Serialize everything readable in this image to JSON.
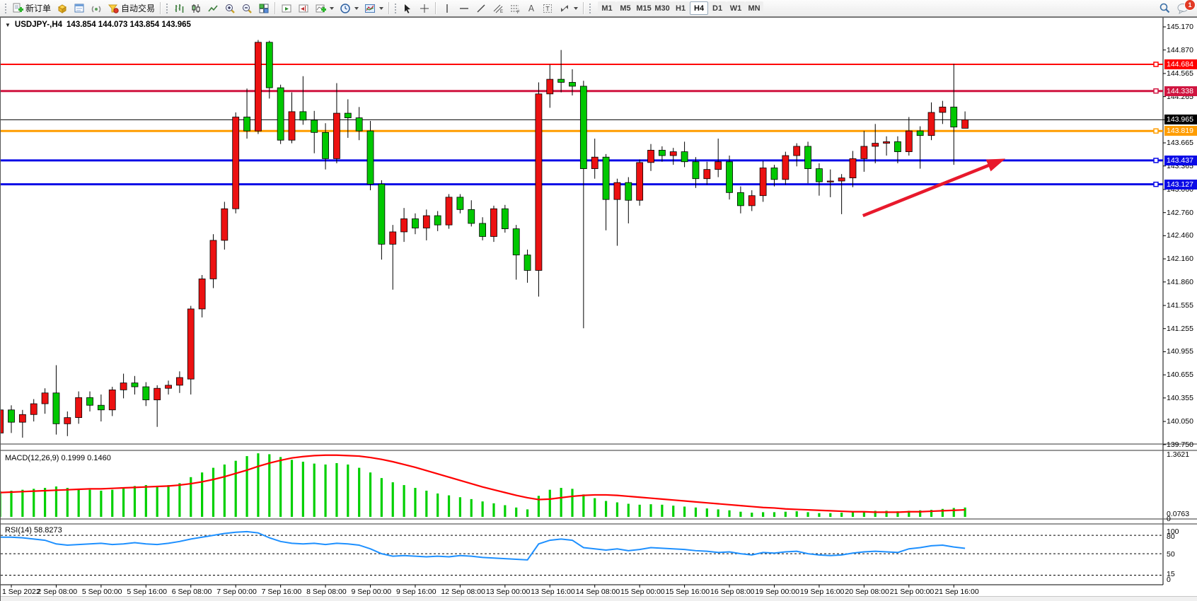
{
  "toolbar": {
    "new_order_label": "新订单",
    "autotrading_label": "自动交易",
    "timeframes": [
      "M1",
      "M5",
      "M15",
      "M30",
      "H1",
      "H4",
      "D1",
      "W1",
      "MN"
    ],
    "active_timeframe": "H4",
    "notification_count": "1"
  },
  "chart": {
    "symbol_period": "USDJPY-,H4",
    "ohlc": "143.854 144.073 143.854 143.965"
  },
  "indicators": {
    "macd": {
      "name": "MACD(12,26,9)",
      "values": "0.1999 0.1460"
    },
    "rsi": {
      "name": "RSI(14)",
      "value": "58.8273"
    }
  },
  "chart_data": {
    "type": "candlestick",
    "symbol": "USDJPY-",
    "timeframe": "H4",
    "title": "USDJPY-,H4 143.854 144.073 143.854 143.965",
    "ylim": [
      139.71,
      145.3
    ],
    "grid": false,
    "price_ticks": [
      "145.170",
      "144.870",
      "144.565",
      "144.265",
      "143.965",
      "143.665",
      "143.365",
      "143.060",
      "142.760",
      "142.460",
      "142.160",
      "141.860",
      "141.555",
      "141.255",
      "140.955",
      "140.655",
      "140.355",
      "140.050",
      "139.750"
    ],
    "time_labels": [
      "1 Sep 2022",
      "2 Sep 08:00",
      "5 Sep 00:00",
      "5 Sep 16:00",
      "6 Sep 08:00",
      "7 Sep 00:00",
      "7 Sep 16:00",
      "8 Sep 08:00",
      "9 Sep 00:00",
      "9 Sep 16:00",
      "12 Sep 08:00",
      "13 Sep 00:00",
      "13 Sep 16:00",
      "14 Sep 08:00",
      "15 Sep 00:00",
      "15 Sep 16:00",
      "16 Sep 08:00",
      "19 Sep 00:00",
      "19 Sep 16:00",
      "20 Sep 08:00",
      "21 Sep 00:00",
      "21 Sep 16:00"
    ],
    "candles_ohlc": [
      [
        139.9,
        140.28,
        139.85,
        140.2
      ],
      [
        140.2,
        140.26,
        139.9,
        140.04
      ],
      [
        140.04,
        140.2,
        139.84,
        140.14
      ],
      [
        140.14,
        140.34,
        140.05,
        140.28
      ],
      [
        140.28,
        140.48,
        140.15,
        140.42
      ],
      [
        140.42,
        140.78,
        139.88,
        140.02
      ],
      [
        140.02,
        140.18,
        139.86,
        140.1
      ],
      [
        140.1,
        140.44,
        140.02,
        140.36
      ],
      [
        140.36,
        140.44,
        140.18,
        140.26
      ],
      [
        140.26,
        140.4,
        140.05,
        140.2
      ],
      [
        140.2,
        140.5,
        140.12,
        140.46
      ],
      [
        140.46,
        140.67,
        140.35,
        140.55
      ],
      [
        140.55,
        140.64,
        140.4,
        140.5
      ],
      [
        140.5,
        140.56,
        140.25,
        140.33
      ],
      [
        140.33,
        140.52,
        139.98,
        140.48
      ],
      [
        140.48,
        140.58,
        140.4,
        140.52
      ],
      [
        140.52,
        140.7,
        140.42,
        140.62
      ],
      [
        140.6,
        141.55,
        140.4,
        141.51
      ],
      [
        141.51,
        141.95,
        141.4,
        141.9
      ],
      [
        141.9,
        142.48,
        141.78,
        142.4
      ],
      [
        142.4,
        142.9,
        142.28,
        142.81
      ],
      [
        142.81,
        144.06,
        142.75,
        144.0
      ],
      [
        144.0,
        144.37,
        143.72,
        143.82
      ],
      [
        143.82,
        145.0,
        143.78,
        144.97
      ],
      [
        144.97,
        144.99,
        144.24,
        144.38
      ],
      [
        144.38,
        144.42,
        143.65,
        143.7
      ],
      [
        143.7,
        144.32,
        143.66,
        144.07
      ],
      [
        144.07,
        144.53,
        143.9,
        143.96
      ],
      [
        143.96,
        144.08,
        143.53,
        143.8
      ],
      [
        143.8,
        143.92,
        143.32,
        143.46
      ],
      [
        143.46,
        144.44,
        143.4,
        144.05
      ],
      [
        144.05,
        144.23,
        143.73,
        143.99
      ],
      [
        143.99,
        144.13,
        143.7,
        143.82
      ],
      [
        143.82,
        143.95,
        143.05,
        143.13
      ],
      [
        143.13,
        143.18,
        142.15,
        142.35
      ],
      [
        142.35,
        142.6,
        141.76,
        142.51
      ],
      [
        142.51,
        142.82,
        142.38,
        142.68
      ],
      [
        142.68,
        142.75,
        142.48,
        142.56
      ],
      [
        142.56,
        142.8,
        142.4,
        142.72
      ],
      [
        142.72,
        142.78,
        142.52,
        142.6
      ],
      [
        142.6,
        143.0,
        142.55,
        142.96
      ],
      [
        142.96,
        143.0,
        142.75,
        142.8
      ],
      [
        142.8,
        142.92,
        142.58,
        142.62
      ],
      [
        142.62,
        142.7,
        142.4,
        142.45
      ],
      [
        142.45,
        142.85,
        142.38,
        142.81
      ],
      [
        142.81,
        142.86,
        142.5,
        142.55
      ],
      [
        142.55,
        142.6,
        141.89,
        142.21
      ],
      [
        142.21,
        142.28,
        141.85,
        142.01
      ],
      [
        142.01,
        144.45,
        141.67,
        144.3
      ],
      [
        144.3,
        144.68,
        144.12,
        144.49
      ],
      [
        144.49,
        144.87,
        144.32,
        144.45
      ],
      [
        144.45,
        144.62,
        144.28,
        144.4
      ],
      [
        144.4,
        144.47,
        141.26,
        143.33
      ],
      [
        143.33,
        143.72,
        143.2,
        143.48
      ],
      [
        143.48,
        143.52,
        142.53,
        142.93
      ],
      [
        142.93,
        143.2,
        142.33,
        143.15
      ],
      [
        143.15,
        143.22,
        142.62,
        142.92
      ],
      [
        142.92,
        143.45,
        142.85,
        143.41
      ],
      [
        143.41,
        143.65,
        143.3,
        143.57
      ],
      [
        143.57,
        143.62,
        143.42,
        143.5
      ],
      [
        143.5,
        143.6,
        143.38,
        143.55
      ],
      [
        143.55,
        143.68,
        143.35,
        143.42
      ],
      [
        143.42,
        143.48,
        143.08,
        143.2
      ],
      [
        143.2,
        143.42,
        143.12,
        143.32
      ],
      [
        143.32,
        143.72,
        143.22,
        143.42
      ],
      [
        143.42,
        143.5,
        142.93,
        143.02
      ],
      [
        143.02,
        143.1,
        142.75,
        142.85
      ],
      [
        142.85,
        143.05,
        142.78,
        142.98
      ],
      [
        142.98,
        143.43,
        142.9,
        143.34
      ],
      [
        143.34,
        143.38,
        143.1,
        143.19
      ],
      [
        143.19,
        143.55,
        143.12,
        143.5
      ],
      [
        143.5,
        143.66,
        143.36,
        143.62
      ],
      [
        143.62,
        143.68,
        143.14,
        143.33
      ],
      [
        143.33,
        143.4,
        142.98,
        143.16
      ],
      [
        143.16,
        143.32,
        142.96,
        143.17
      ],
      [
        143.17,
        143.26,
        142.74,
        143.21
      ],
      [
        143.21,
        143.56,
        143.09,
        143.46
      ],
      [
        143.46,
        143.82,
        143.29,
        143.62
      ],
      [
        143.62,
        143.91,
        143.4,
        143.66
      ],
      [
        143.66,
        143.75,
        143.5,
        143.68
      ],
      [
        143.68,
        143.75,
        143.4,
        143.55
      ],
      [
        143.55,
        144.0,
        143.5,
        143.82
      ],
      [
        143.82,
        143.88,
        143.33,
        143.76
      ],
      [
        143.76,
        144.19,
        143.7,
        144.06
      ],
      [
        144.06,
        144.21,
        143.91,
        144.13
      ],
      [
        144.13,
        144.69,
        143.38,
        143.87
      ],
      [
        143.854,
        144.073,
        143.854,
        143.965
      ]
    ],
    "hlines": [
      {
        "price": "144.684",
        "color": "#ff0000",
        "width": 2
      },
      {
        "price": "144.338",
        "color": "#d01540",
        "width": 3
      },
      {
        "price": "143.819",
        "color": "#ff9d00",
        "width": 3
      },
      {
        "price": "143.437",
        "color": "#0b0be6",
        "width": 3
      },
      {
        "price": "143.127",
        "color": "#0b0be6",
        "width": 3
      }
    ],
    "bid_line": {
      "price": "143.965",
      "color": "#000000"
    },
    "arrow": {
      "from_bar": 75.9,
      "from_price": 142.72,
      "to_bar": 88.6,
      "to_price": 143.46,
      "color": "#e8192c"
    },
    "macd": {
      "histogram": [
        0.55,
        0.56,
        0.58,
        0.6,
        0.62,
        0.65,
        0.62,
        0.6,
        0.58,
        0.56,
        0.58,
        0.62,
        0.66,
        0.68,
        0.66,
        0.68,
        0.72,
        0.85,
        0.95,
        1.05,
        1.12,
        1.2,
        1.3,
        1.36,
        1.34,
        1.28,
        1.22,
        1.18,
        1.14,
        1.12,
        1.15,
        1.12,
        1.05,
        0.95,
        0.83,
        0.74,
        0.68,
        0.62,
        0.56,
        0.5,
        0.46,
        0.42,
        0.38,
        0.33,
        0.29,
        0.25,
        0.2,
        0.16,
        0.45,
        0.58,
        0.62,
        0.6,
        0.48,
        0.4,
        0.34,
        0.31,
        0.28,
        0.26,
        0.27,
        0.26,
        0.24,
        0.22,
        0.2,
        0.18,
        0.16,
        0.14,
        0.11,
        0.09,
        0.1,
        0.1,
        0.11,
        0.12,
        0.1,
        0.08,
        0.08,
        0.09,
        0.1,
        0.12,
        0.13,
        0.13,
        0.12,
        0.13,
        0.14,
        0.15,
        0.17,
        0.19,
        0.2
      ],
      "signal": [
        0.52,
        0.53,
        0.54,
        0.55,
        0.56,
        0.57,
        0.58,
        0.59,
        0.6,
        0.6,
        0.61,
        0.62,
        0.63,
        0.64,
        0.65,
        0.66,
        0.68,
        0.71,
        0.75,
        0.8,
        0.86,
        0.93,
        1.0,
        1.08,
        1.15,
        1.21,
        1.26,
        1.29,
        1.31,
        1.32,
        1.32,
        1.31,
        1.3,
        1.27,
        1.23,
        1.18,
        1.12,
        1.06,
        0.99,
        0.92,
        0.85,
        0.78,
        0.71,
        0.64,
        0.58,
        0.52,
        0.46,
        0.41,
        0.37,
        0.38,
        0.41,
        0.44,
        0.46,
        0.47,
        0.47,
        0.46,
        0.44,
        0.42,
        0.4,
        0.38,
        0.36,
        0.34,
        0.32,
        0.3,
        0.28,
        0.26,
        0.24,
        0.22,
        0.2,
        0.19,
        0.17,
        0.16,
        0.15,
        0.14,
        0.13,
        0.12,
        0.11,
        0.11,
        0.1,
        0.1,
        0.1,
        0.11,
        0.11,
        0.12,
        0.13,
        0.14,
        0.15
      ],
      "scale_labels": [
        "1.3621",
        "0.0763",
        "0"
      ],
      "scale_max": 1.3621
    },
    "rsi": {
      "values": [
        77,
        77,
        76,
        74,
        72,
        66,
        64,
        65,
        66,
        67,
        65,
        66,
        68,
        66,
        65,
        67,
        70,
        74,
        77,
        80,
        83,
        85,
        86,
        84,
        76,
        70,
        67,
        66,
        67,
        65,
        67,
        66,
        64,
        58,
        50,
        46,
        47,
        46,
        45,
        46,
        45,
        47,
        46,
        44,
        43,
        42,
        41,
        40,
        66,
        72,
        74,
        72,
        60,
        58,
        56,
        58,
        55,
        57,
        60,
        59,
        58,
        57,
        55,
        54,
        52,
        53,
        50,
        48,
        52,
        51,
        53,
        54,
        50,
        48,
        47,
        48,
        51,
        53,
        54,
        53,
        52,
        58,
        60,
        63,
        64,
        61,
        58.8
      ],
      "levels": [
        80,
        50,
        15
      ],
      "scale_labels": [
        "100",
        "80",
        "50",
        "15",
        "0"
      ]
    },
    "colors": {
      "up": "#ec1111",
      "down": "#00c800",
      "wick": "#000000",
      "macd_hist": "#00d000",
      "macd_signal": "#ff0000",
      "rsi": "#1e90ff"
    }
  }
}
